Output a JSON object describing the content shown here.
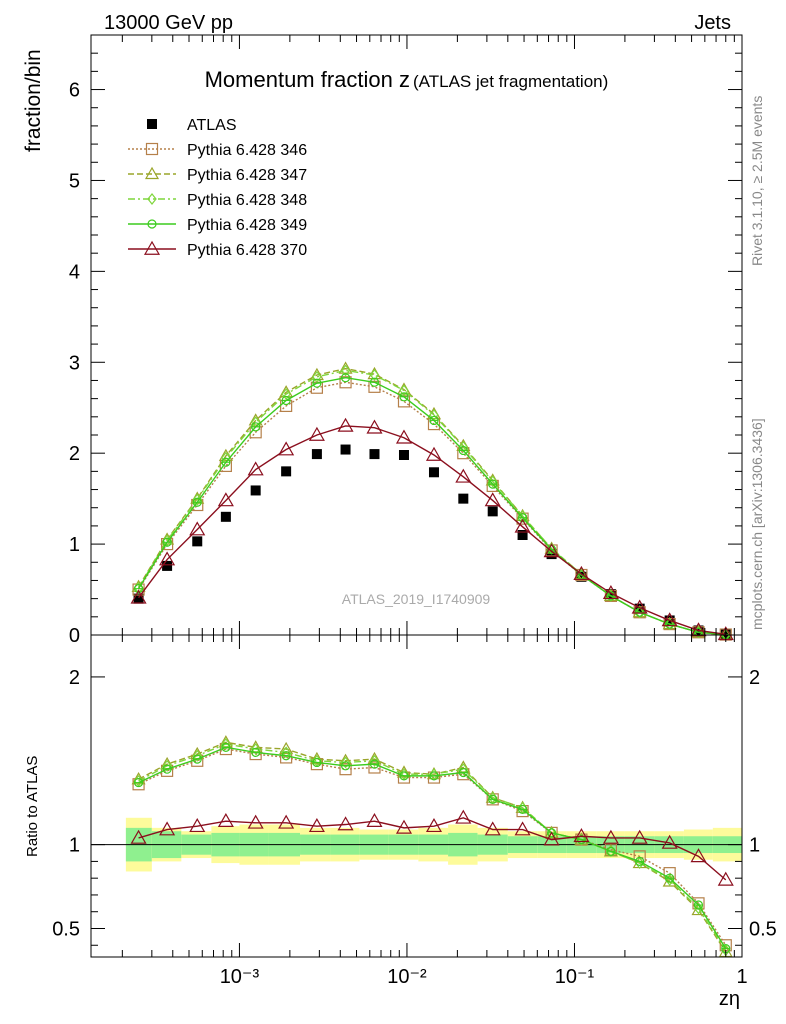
{
  "header": {
    "left": "13000 GeV pp",
    "right": "Jets"
  },
  "side_labels": {
    "rivet": "Rivet 3.1.10, ≥ 2.5M events",
    "mcplots": "mcplots.cern.ch [arXiv:1306.3436]"
  },
  "chart_data": [
    {
      "type": "line",
      "title_main": "Momentum fraction z",
      "title_sub": "(ATLAS jet fragmentation)",
      "watermark": "ATLAS_2019_I1740909",
      "ylabel": "fraction/bin",
      "xlabel": "zη",
      "xscale": "log",
      "xlim": [
        0.00013,
        1.0
      ],
      "ylim": [
        0,
        6.6
      ],
      "yticks": [
        "0",
        "1",
        "2",
        "3",
        "4",
        "5",
        "6"
      ],
      "xticks": [
        "10⁻³",
        "10⁻²",
        "10⁻¹",
        "1"
      ],
      "legend_position": "top-left",
      "x": [
        0.00025,
        0.00037,
        0.00056,
        0.00083,
        0.00125,
        0.0019,
        0.0029,
        0.0043,
        0.0064,
        0.0096,
        0.0145,
        0.0217,
        0.0325,
        0.049,
        0.073,
        0.11,
        0.165,
        0.245,
        0.37,
        0.55,
        0.8
      ],
      "series": [
        {
          "name": "ATLAS",
          "color": "#000000",
          "style": "marker",
          "values": [
            0.4,
            0.76,
            1.03,
            1.3,
            1.59,
            1.8,
            1.99,
            2.04,
            1.99,
            1.98,
            1.79,
            1.5,
            1.36,
            1.1,
            0.89,
            0.64,
            0.45,
            0.29,
            0.16,
            0.05,
            0.01
          ]
        },
        {
          "name": "Pythia 6.428 346",
          "color": "#b5804a",
          "style": "dotted",
          "values": [
            0.5,
            1.0,
            1.43,
            1.86,
            2.23,
            2.52,
            2.72,
            2.78,
            2.73,
            2.57,
            2.32,
            2.0,
            1.64,
            1.28,
            0.93,
            0.66,
            0.43,
            0.25,
            0.12,
            0.03,
            0.005
          ]
        },
        {
          "name": "Pythia 6.428 347",
          "color": "#9aa52a",
          "style": "dashed",
          "values": [
            0.53,
            1.05,
            1.5,
            1.97,
            2.36,
            2.67,
            2.86,
            2.93,
            2.87,
            2.7,
            2.43,
            2.08,
            1.7,
            1.31,
            0.95,
            0.67,
            0.43,
            0.25,
            0.12,
            0.03,
            0.004
          ]
        },
        {
          "name": "Pythia 6.428 348",
          "color": "#7fd63c",
          "style": "dashdot",
          "values": [
            0.52,
            1.04,
            1.49,
            1.95,
            2.34,
            2.65,
            2.84,
            2.91,
            2.86,
            2.69,
            2.42,
            2.07,
            1.69,
            1.31,
            0.95,
            0.67,
            0.43,
            0.25,
            0.12,
            0.03,
            0.004
          ]
        },
        {
          "name": "Pythia 6.428 349",
          "color": "#3ccc1e",
          "style": "solid",
          "values": [
            0.51,
            1.02,
            1.46,
            1.9,
            2.29,
            2.58,
            2.77,
            2.83,
            2.78,
            2.62,
            2.36,
            2.03,
            1.66,
            1.29,
            0.94,
            0.66,
            0.43,
            0.25,
            0.12,
            0.03,
            0.005
          ]
        },
        {
          "name": "Pythia 6.428 370",
          "color": "#8b0f1e",
          "style": "solid",
          "values": [
            0.41,
            0.83,
            1.16,
            1.48,
            1.82,
            2.04,
            2.2,
            2.3,
            2.28,
            2.17,
            1.98,
            1.74,
            1.48,
            1.19,
            0.92,
            0.67,
            0.46,
            0.3,
            0.16,
            0.05,
            0.008
          ]
        }
      ]
    },
    {
      "type": "line",
      "ylabel": "Ratio to ATLAS",
      "xlabel": "zη",
      "xscale": "log",
      "xlim": [
        0.00013,
        1.0
      ],
      "ylim": [
        0.33,
        2.25
      ],
      "yticks": [
        "0.5",
        "1",
        "2"
      ],
      "bin_edges": [
        0.00021,
        0.0003,
        0.00045,
        0.00068,
        0.001,
        0.0015,
        0.0023,
        0.0035,
        0.0052,
        0.0078,
        0.0117,
        0.0176,
        0.0264,
        0.04,
        0.06,
        0.09,
        0.135,
        0.2,
        0.3,
        0.45,
        0.67,
        1.0
      ],
      "band_stat": [
        0.1,
        0.08,
        0.06,
        0.07,
        0.07,
        0.07,
        0.06,
        0.06,
        0.06,
        0.06,
        0.06,
        0.07,
        0.06,
        0.05,
        0.05,
        0.05,
        0.05,
        0.05,
        0.05,
        0.05,
        0.05
      ],
      "band_total": [
        0.16,
        0.1,
        0.08,
        0.11,
        0.12,
        0.12,
        0.1,
        0.1,
        0.09,
        0.09,
        0.1,
        0.12,
        0.1,
        0.08,
        0.08,
        0.08,
        0.08,
        0.08,
        0.08,
        0.09,
        0.1
      ],
      "series": [
        {
          "name": "Pythia 6.428 346",
          "color": "#b5804a",
          "style": "dotted",
          "values": [
            1.36,
            1.44,
            1.5,
            1.57,
            1.54,
            1.52,
            1.48,
            1.45,
            1.46,
            1.4,
            1.4,
            1.42,
            1.27,
            1.2,
            1.07,
            1.03,
            0.97,
            0.93,
            0.83,
            0.65,
            0.4
          ]
        },
        {
          "name": "Pythia 6.428 347",
          "color": "#9aa52a",
          "style": "dashed",
          "values": [
            1.39,
            1.48,
            1.54,
            1.61,
            1.58,
            1.57,
            1.51,
            1.5,
            1.51,
            1.43,
            1.42,
            1.46,
            1.28,
            1.22,
            1.07,
            1.03,
            0.96,
            0.89,
            0.78,
            0.61,
            0.36
          ]
        },
        {
          "name": "Pythia 6.428 348",
          "color": "#7fd63c",
          "style": "dashdot",
          "values": [
            1.38,
            1.47,
            1.53,
            1.6,
            1.57,
            1.55,
            1.5,
            1.49,
            1.5,
            1.42,
            1.42,
            1.45,
            1.28,
            1.22,
            1.07,
            1.03,
            0.96,
            0.89,
            0.79,
            0.62,
            0.37
          ]
        },
        {
          "name": "Pythia 6.428 349",
          "color": "#3ccc1e",
          "style": "solid",
          "values": [
            1.37,
            1.45,
            1.51,
            1.58,
            1.55,
            1.53,
            1.49,
            1.47,
            1.48,
            1.41,
            1.41,
            1.43,
            1.27,
            1.21,
            1.07,
            1.03,
            0.96,
            0.9,
            0.8,
            0.64,
            0.38
          ]
        },
        {
          "name": "Pythia 6.428 370",
          "color": "#8b0f1e",
          "style": "solid",
          "values": [
            1.04,
            1.09,
            1.11,
            1.14,
            1.13,
            1.13,
            1.11,
            1.12,
            1.14,
            1.1,
            1.11,
            1.16,
            1.09,
            1.09,
            1.03,
            1.05,
            1.04,
            1.04,
            1.01,
            0.93,
            0.79
          ]
        }
      ]
    }
  ]
}
